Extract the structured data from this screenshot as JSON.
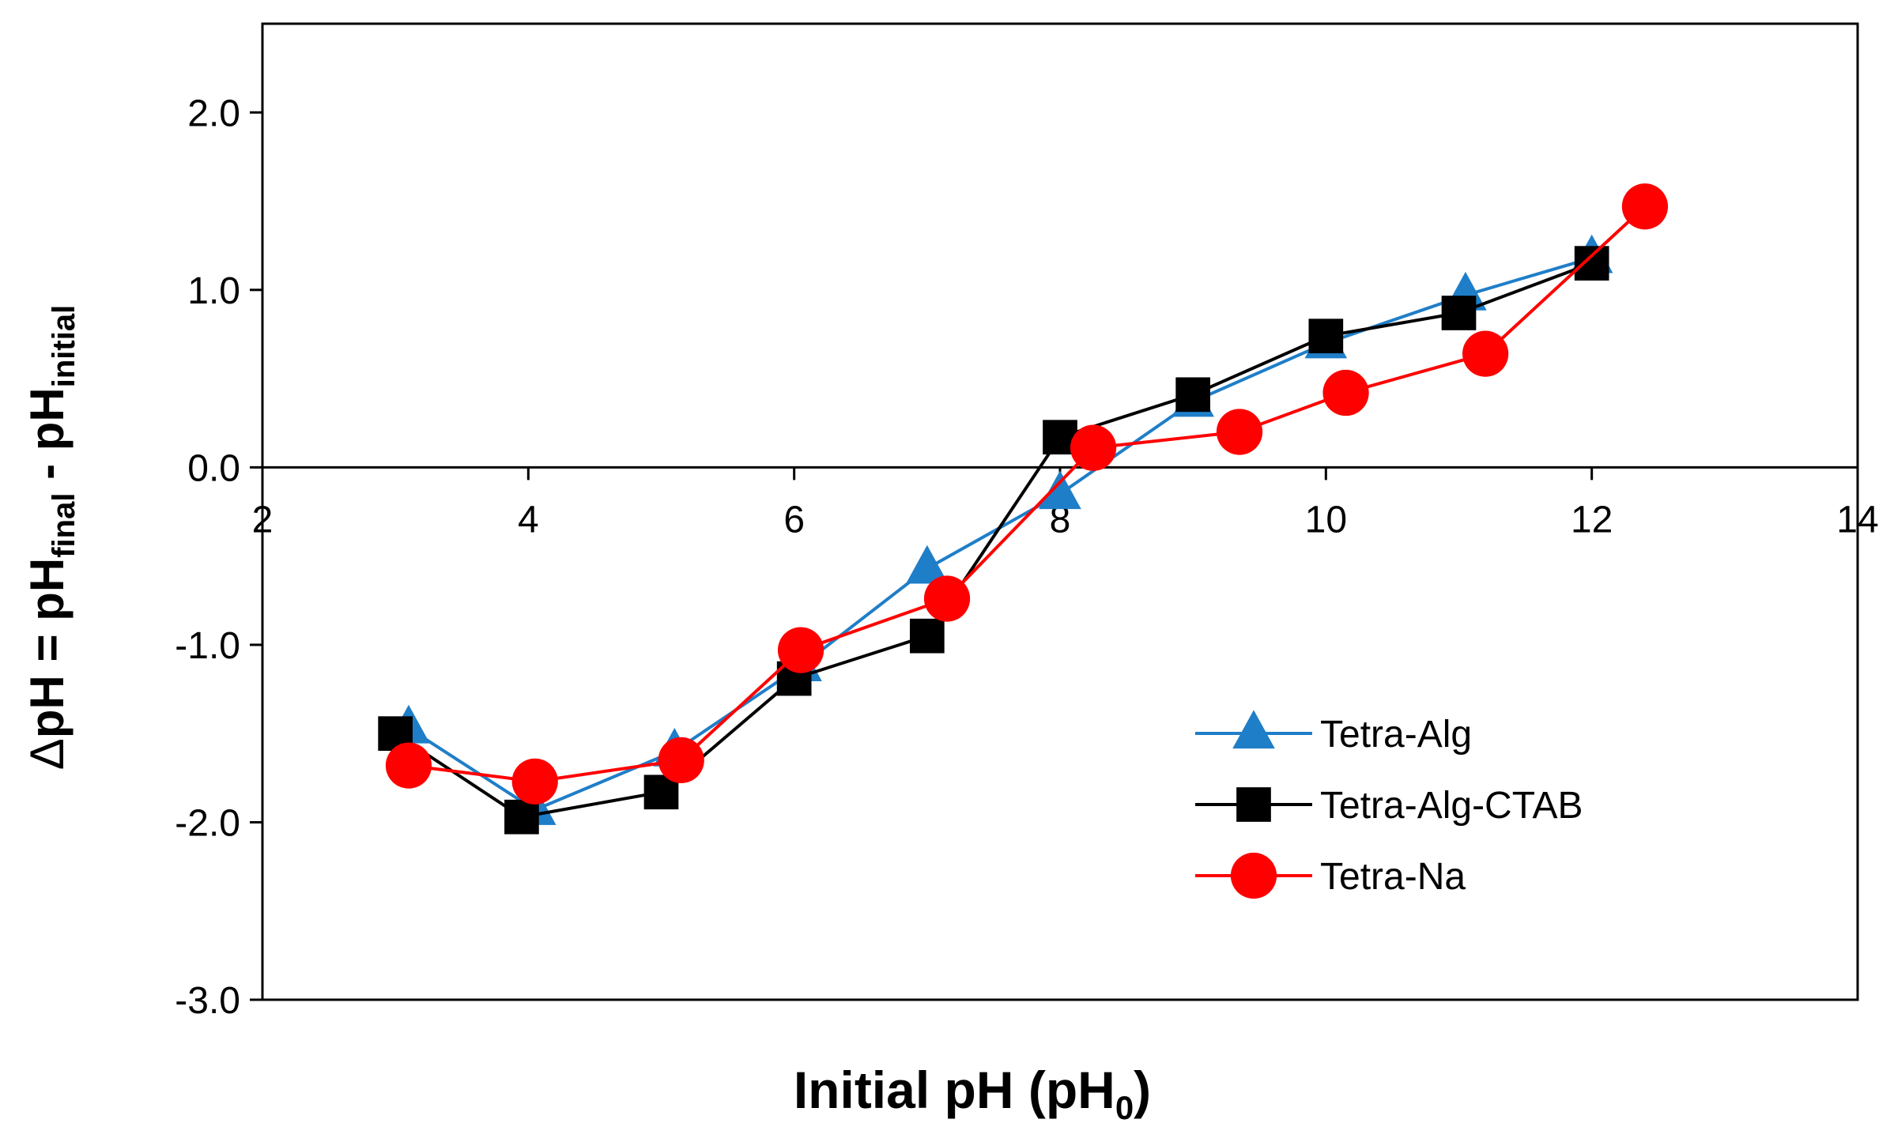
{
  "chart_data": {
    "type": "line",
    "title": "",
    "xlabel": {
      "main": "Initial pH (pH",
      "sub": "0",
      "end": ")"
    },
    "ylabel": {
      "delta": "Δ",
      "p1": "pH = pH",
      "s1": "final",
      "p2": " - pH",
      "s2": "initial"
    },
    "xlim": [
      2,
      14
    ],
    "ylim": [
      -3,
      2.5
    ],
    "xticks": [
      2,
      4,
      6,
      8,
      10,
      12,
      14
    ],
    "xtick_labels": [
      "2",
      "4",
      "6",
      "8",
      "10",
      "12",
      "14"
    ],
    "yticks": [
      -3,
      -2,
      -1,
      0,
      1,
      2
    ],
    "ytick_labels": [
      "-3.0",
      "-2.0",
      "-1.0",
      "0.0",
      "1.0",
      "2.0"
    ],
    "grid": false,
    "legend_position": "lower-right",
    "series": [
      {
        "name": "Tetra-Alg",
        "color": "#1f7ec8",
        "marker": "triangle",
        "x": [
          3.1,
          4.05,
          5.1,
          6.05,
          7.0,
          8.0,
          9.0,
          10.0,
          11.05,
          12.0
        ],
        "y": [
          -1.47,
          -1.93,
          -1.6,
          -1.12,
          -0.57,
          -0.15,
          0.37,
          0.7,
          0.97,
          1.18
        ]
      },
      {
        "name": "Tetra-Alg-CTAB",
        "color": "#000000",
        "marker": "square",
        "x": [
          3.0,
          3.95,
          5.0,
          6.0,
          7.0,
          8.0,
          9.0,
          10.0,
          11.0,
          12.0
        ],
        "y": [
          -1.5,
          -1.97,
          -1.83,
          -1.19,
          -0.95,
          0.17,
          0.41,
          0.74,
          0.87,
          1.15
        ]
      },
      {
        "name": "Tetra-Na",
        "color": "#ff0000",
        "marker": "circle",
        "x": [
          3.1,
          4.05,
          5.15,
          6.05,
          7.15,
          8.25,
          9.35,
          10.15,
          11.2,
          12.4
        ],
        "y": [
          -1.68,
          -1.77,
          -1.65,
          -1.03,
          -0.74,
          0.11,
          0.2,
          0.42,
          0.64,
          1.47
        ]
      }
    ]
  }
}
